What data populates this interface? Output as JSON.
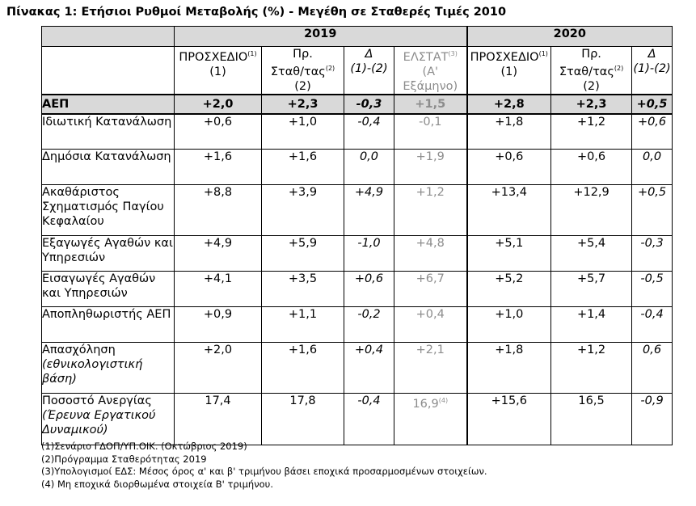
{
  "title": "Πίνακας 1: Ετήσιοι Ρυθμοί Μεταβολής (%) - Μεγέθη σε Σταθερές Τιμές 2010",
  "years": [
    "2019",
    "2020"
  ],
  "subheaders": {
    "c1": {
      "line1": "ΠΡΟΣΧΕΔΙΟ",
      "sup": "(1)",
      "line2": "(1)"
    },
    "c2": {
      "line1": "Πρ.",
      "line2": "Σταθ/τας",
      "sup": "(2)",
      "line3": "(2)"
    },
    "c3": {
      "line1": "Δ",
      "line2": "(1)-(2)"
    },
    "c4": {
      "line1": "ΕΛΣΤΑΤ",
      "sup": "(3)",
      "line2": "(Α'",
      "line3": "Εξάμηνο)"
    },
    "c5": {
      "line1": "ΠΡΟΣΧΕΔΙΟ",
      "sup": "(1)",
      "line2": "(1)"
    },
    "c6": {
      "line1": "Πρ.",
      "line2": "Σταθ/τας",
      "sup": "(2)",
      "line3": "(2)"
    },
    "c7": {
      "line1": "Δ",
      "line2": "(1)-(2)"
    }
  },
  "rows": [
    {
      "label": "ΑΕΠ",
      "sub": "",
      "values": [
        "+2,0",
        "+2,3",
        "-0,3",
        "+1,5",
        "+2,8",
        "+2,3",
        "+0,5"
      ]
    },
    {
      "label": "Ιδιωτική Κατανάλωση",
      "sub": "",
      "values": [
        "+0,6",
        "+1,0",
        "-0,4",
        "-0,1",
        "+1,8",
        "+1,2",
        "+0,6"
      ]
    },
    {
      "label": "Δημόσια Κατανάλωση",
      "sub": "",
      "values": [
        "+1,6",
        "+1,6",
        "0,0",
        "+1,9",
        "+0,6",
        "+0,6",
        "0,0"
      ]
    },
    {
      "label": "Ακαθάριστος Σχηματισμός Παγίου Κεφαλαίου",
      "sub": "",
      "values": [
        "+8,8",
        "+3,9",
        "+4,9",
        "+1,2",
        "+13,4",
        "+12,9",
        "+0,5"
      ]
    },
    {
      "label": "Εξαγωγές Αγαθών και Υπηρεσιών",
      "sub": "",
      "values": [
        "+4,9",
        "+5,9",
        "-1,0",
        "+4,8",
        "+5,1",
        "+5,4",
        "-0,3"
      ]
    },
    {
      "label": "Εισαγωγές Αγαθών και Υπηρεσιών",
      "sub": "",
      "values": [
        "+4,1",
        "+3,5",
        "+0,6",
        "+6,7",
        "+5,2",
        "+5,7",
        "-0,5"
      ]
    },
    {
      "label": "Αποπληθωριστής ΑΕΠ",
      "sub": "",
      "values": [
        "+0,9",
        "+1,1",
        "-0,2",
        "+0,4",
        "+1,0",
        "+1,4",
        "-0,4"
      ]
    },
    {
      "label": "Απασχόληση",
      "sub": "(εθνικολογιστική βάση)",
      "values": [
        "+2,0",
        "+1,6",
        "+0,4",
        "+2,1",
        "+1,8",
        "+1,2",
        "0,6"
      ]
    },
    {
      "label": "Ποσοστό Ανεργίας",
      "sub": "(Έρευνα Εργατικού Δυναμικού)",
      "values": [
        "17,4",
        "17,8",
        "-0,4",
        "16,9",
        "+15,6",
        "16,5",
        "-0,9"
      ],
      "sup4": "(4)"
    }
  ],
  "footnotes": [
    "(1)Σενάριο ΓΔΟΠ/ΥΠ.ΟΙΚ. (Οκτώβριος 2019)",
    "(2)Πρόγραμμα Σταθερότητας 2019",
    "(3)Υπολογισμοί ΕΔΣ: Μέσος όρος α' και β' τριμήνου βάσει εποχικά προσαρμοσμένων στοιχείων.",
    "(4) Μη εποχικά διορθωμένα στοιχεία Β' τριμήνου."
  ]
}
